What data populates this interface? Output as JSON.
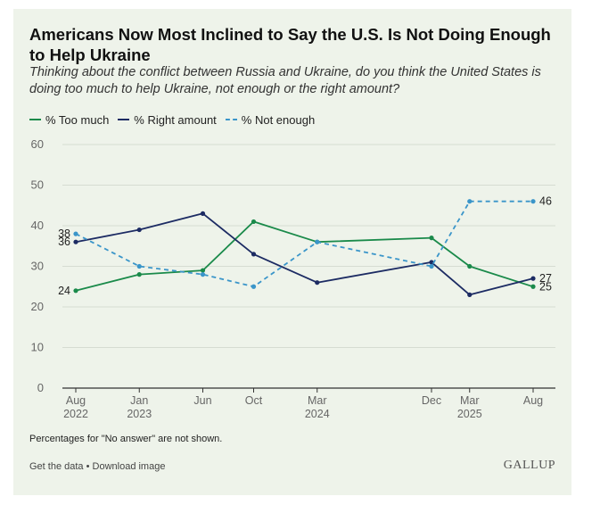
{
  "header": {
    "title": "Americans Now Most Inclined to Say the U.S. Is Not Doing Enough to Help Ukraine",
    "subtitle": "Thinking about the conflict between Russia and Ukraine, do you think the United States is doing too much to help Ukraine, not enough or the right amount?"
  },
  "legend": {
    "too_much": "% Too much",
    "right_amount": "% Right amount",
    "not_enough": "% Not enough"
  },
  "colors": {
    "too_much": "#1a8a4a",
    "right_amount": "#1c2b63",
    "not_enough": "#3a95c9",
    "grid": "#d6dcd2",
    "axis": "#333333",
    "tick_text": "#666666"
  },
  "chart_data": {
    "type": "line",
    "title": "Americans Now Most Inclined to Say the U.S. Is Not Doing Enough to Help Ukraine",
    "xlabel": "",
    "ylabel": "",
    "ylim": [
      0,
      60
    ],
    "yticks": [
      0,
      10,
      20,
      30,
      40,
      50,
      60
    ],
    "x_date_range": [
      "2022-08",
      "2025-08"
    ],
    "x_ticks": [
      {
        "date": "2022-08",
        "line1": "Aug",
        "line2": "2022"
      },
      {
        "date": "2023-01",
        "line1": "Jan",
        "line2": "2023"
      },
      {
        "date": "2023-06",
        "line1": "Jun",
        "line2": ""
      },
      {
        "date": "2023-10",
        "line1": "Oct",
        "line2": ""
      },
      {
        "date": "2024-03",
        "line1": "Mar",
        "line2": "2024"
      },
      {
        "date": "2024-12",
        "line1": "Dec",
        "line2": ""
      },
      {
        "date": "2025-03",
        "line1": "Mar",
        "line2": "2025"
      },
      {
        "date": "2025-08",
        "line1": "Aug",
        "line2": ""
      }
    ],
    "series": [
      {
        "key": "too_much",
        "name": "% Too much",
        "style": "solid",
        "dates": [
          "2022-08",
          "2023-01",
          "2023-06",
          "2023-10",
          "2024-03",
          "2024-12",
          "2025-03",
          "2025-08"
        ],
        "values": [
          24,
          28,
          29,
          41,
          36,
          37,
          30,
          25
        ]
      },
      {
        "key": "right_amount",
        "name": "% Right amount",
        "style": "solid",
        "dates": [
          "2022-08",
          "2023-01",
          "2023-06",
          "2023-10",
          "2024-03",
          "2024-12",
          "2025-03",
          "2025-08"
        ],
        "values": [
          36,
          39,
          43,
          33,
          26,
          31,
          23,
          27
        ]
      },
      {
        "key": "not_enough",
        "name": "% Not enough",
        "style": "dashed",
        "dates": [
          "2022-08",
          "2023-01",
          "2023-06",
          "2023-10",
          "2024-03",
          "2024-12",
          "2025-03",
          "2025-08"
        ],
        "values": [
          38,
          30,
          28,
          25,
          36,
          30,
          46,
          46
        ]
      }
    ],
    "data_labels": [
      {
        "series": "not_enough",
        "index": 0,
        "text": "38",
        "side": "left"
      },
      {
        "series": "right_amount",
        "index": 0,
        "text": "36",
        "side": "left"
      },
      {
        "series": "too_much",
        "index": 0,
        "text": "24",
        "side": "left"
      },
      {
        "series": "not_enough",
        "index": 7,
        "text": "46",
        "side": "right"
      },
      {
        "series": "right_amount",
        "index": 7,
        "text": "27",
        "side": "right"
      },
      {
        "series": "too_much",
        "index": 7,
        "text": "25",
        "side": "right"
      }
    ]
  },
  "footer": {
    "note": "Percentages for \"No answer\" are not shown.",
    "get_data": "Get the data",
    "separator": " • ",
    "download": "Download image",
    "brand": "GALLUP"
  }
}
